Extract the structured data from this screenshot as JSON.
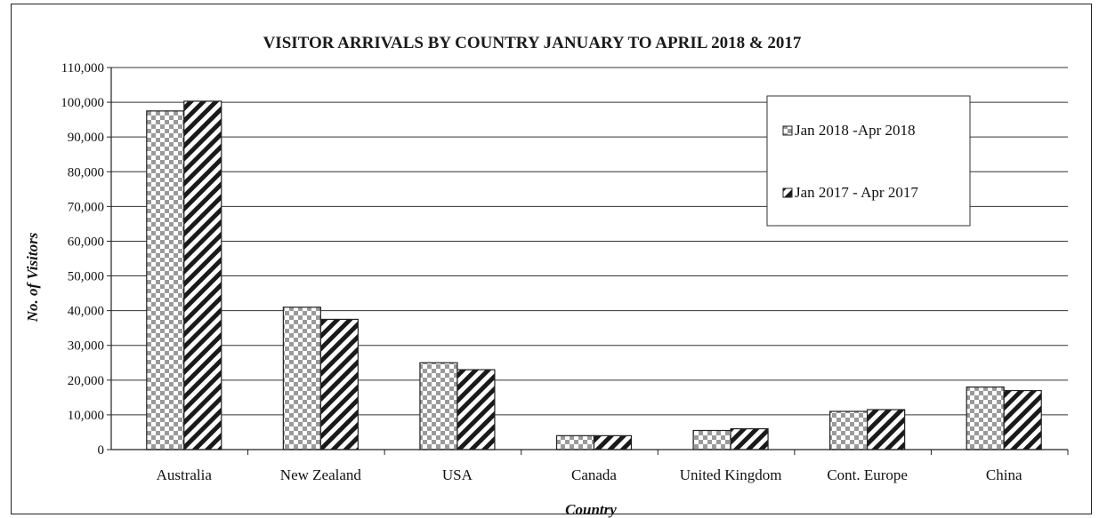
{
  "chart_data": {
    "type": "bar",
    "title": "VISITOR ARRIVALS BY COUNTRY JANUARY TO APRIL 2018 & 2017",
    "xlabel": "Country",
    "ylabel": "No. of Visitors",
    "categories": [
      "Australia",
      "New Zealand",
      "USA",
      "Canada",
      "United Kingdom",
      "Cont. Europe",
      "China"
    ],
    "series": [
      {
        "name": "Jan 2018 -Apr 2018",
        "values": [
          97500,
          41000,
          25000,
          4000,
          5500,
          11000,
          18000
        ],
        "pattern": "checker",
        "color": "#9a9a9a"
      },
      {
        "name": "Jan 2017 - Apr 2017",
        "values": [
          100300,
          37500,
          23000,
          4000,
          6000,
          11500,
          17000
        ],
        "pattern": "diagonal",
        "color": "#1a1a1a"
      }
    ],
    "ylim": [
      0,
      110000
    ],
    "yticks": [
      0,
      10000,
      20000,
      30000,
      40000,
      50000,
      60000,
      70000,
      80000,
      90000,
      100000,
      110000
    ],
    "ytick_labels": [
      "0",
      "10,000",
      "20,000",
      "30,000",
      "40,000",
      "50,000",
      "60,000",
      "70,000",
      "80,000",
      "90,000",
      "100,000",
      "110,000"
    ],
    "grid": true,
    "legend_position": "top-right"
  }
}
